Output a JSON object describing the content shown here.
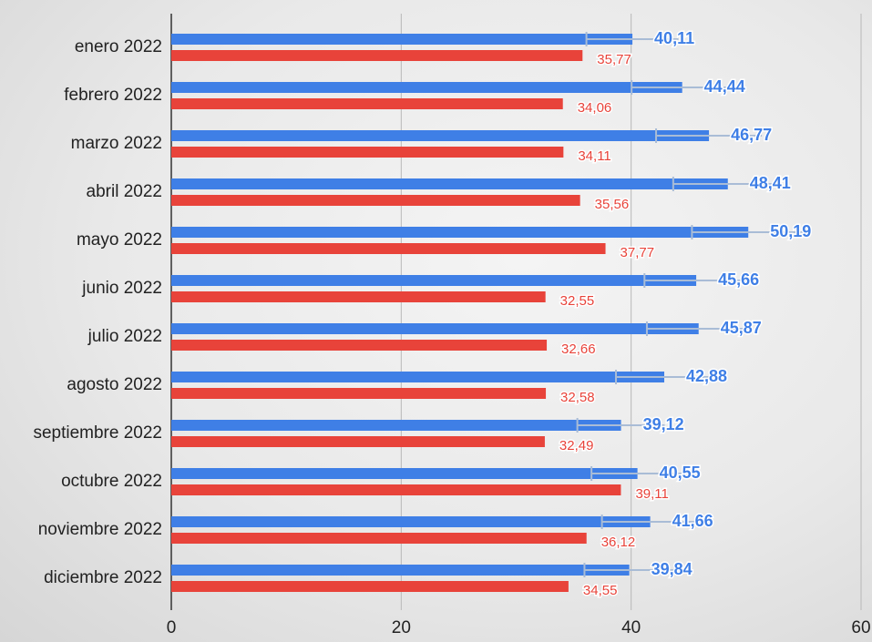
{
  "chart_data": {
    "type": "bar",
    "orientation": "horizontal",
    "categories": [
      "enero 2022",
      "febrero 2022",
      "marzo 2022",
      "abril 2022",
      "mayo 2022",
      "junio 2022",
      "julio 2022",
      "agosto 2022",
      "septiembre 2022",
      "octubre 2022",
      "noviembre 2022",
      "diciembre 2022"
    ],
    "series": [
      {
        "color": "#3f7fe6",
        "values": [
          40.11,
          44.44,
          46.77,
          48.41,
          50.19,
          45.66,
          45.87,
          42.88,
          39.12,
          40.55,
          41.66,
          39.84
        ],
        "value_labels": [
          "40,11",
          "44,44",
          "46,77",
          "48,41",
          "50,19",
          "45,66",
          "45,87",
          "42,88",
          "39,12",
          "40,55",
          "41,66",
          "39,84"
        ],
        "errors": [
          4.0,
          4.4,
          4.6,
          4.75,
          4.9,
          4.5,
          4.5,
          4.2,
          3.8,
          4.0,
          4.2,
          3.9
        ]
      },
      {
        "color": "#e8433a",
        "values": [
          35.77,
          34.06,
          34.11,
          35.56,
          37.77,
          32.55,
          32.66,
          32.58,
          32.49,
          39.11,
          36.12,
          34.55
        ],
        "value_labels": [
          "35,77",
          "34,06",
          "34,11",
          "35,56",
          "37,77",
          "32,55",
          "32,66",
          "32,58",
          "32,49",
          "39,11",
          "36,12",
          "34,55"
        ]
      }
    ],
    "xlim": [
      0,
      60
    ],
    "xticks": [
      0,
      20,
      40,
      60
    ],
    "grid": true
  }
}
